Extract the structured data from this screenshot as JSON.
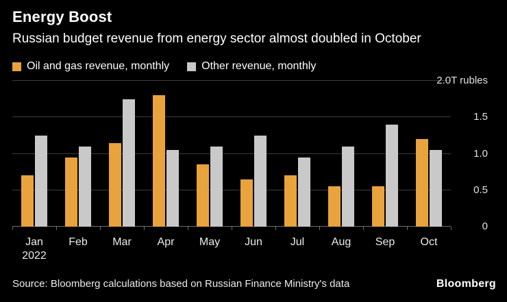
{
  "title": "Energy Boost",
  "subtitle": "Russian budget revenue from energy sector almost doubled in October",
  "source": "Source: Bloomberg calculations based on Russian Finance Ministry's data",
  "brand": "Bloomberg",
  "colors": {
    "background": "#000000",
    "oil_bar": "#E8A33C",
    "other_bar": "#C9C9C9",
    "gridline": "#3D3D3D",
    "baseline": "#6F6F6F"
  },
  "chart_data": {
    "type": "bar",
    "title": "Energy Boost",
    "subtitle": "Russian budget revenue from energy sector almost doubled in October",
    "categories": [
      "Jan",
      "Feb",
      "Mar",
      "Apr",
      "May",
      "Jun",
      "Jul",
      "Aug",
      "Sep",
      "Oct"
    ],
    "x_first_sub_label": "2022",
    "series": [
      {
        "name": "Oil and gas revenue, monthly",
        "color": "#E8A33C",
        "values": [
          0.7,
          0.95,
          1.15,
          1.8,
          0.85,
          0.65,
          0.7,
          0.55,
          0.55,
          1.2
        ]
      },
      {
        "name": "Other revenue, monthly",
        "color": "#C9C9C9",
        "values": [
          1.25,
          1.1,
          1.75,
          1.05,
          1.1,
          1.25,
          0.95,
          1.1,
          1.4,
          1.05
        ]
      }
    ],
    "ylim": [
      0,
      2.0
    ],
    "ylabel": "T rubles",
    "y_ticks": [
      0,
      0.5,
      1.0,
      1.5,
      2.0
    ],
    "y_tick_labels": [
      "0",
      "0.5",
      "1.0",
      "1.5",
      "2.0T rubles"
    ],
    "legend_position": "top-left",
    "grid": "horizontal",
    "y_axis_side": "right"
  }
}
